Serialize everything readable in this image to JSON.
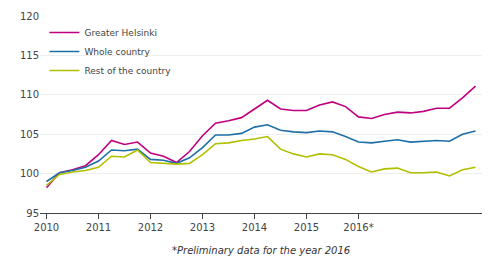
{
  "chart_data": {
    "type": "line",
    "categories": [
      "2010",
      null,
      null,
      null,
      "2011",
      null,
      null,
      null,
      "2012",
      null,
      null,
      null,
      "2013",
      null,
      null,
      null,
      "2014",
      null,
      null,
      null,
      "2015",
      null,
      null,
      null,
      "2016*",
      null,
      null,
      null,
      null,
      null,
      null,
      null,
      null,
      null
    ],
    "series": [
      {
        "name": "Greater Helsinki",
        "color": "#bf0080",
        "values": [
          98.2,
          100.1,
          100.5,
          101.0,
          102.4,
          104.2,
          103.7,
          104.0,
          102.6,
          102.2,
          101.4,
          102.8,
          104.8,
          106.4,
          106.7,
          107.1,
          108.2,
          109.3,
          108.2,
          108.0,
          108.0,
          108.7,
          109.1,
          108.5,
          107.2,
          107.0,
          107.5,
          107.8,
          107.7,
          107.9,
          108.3,
          108.3,
          109.6,
          111.1
        ]
      },
      {
        "name": "Whole country",
        "color": "#1e6fa8",
        "values": [
          99.0,
          100.1,
          100.4,
          100.8,
          101.6,
          103.0,
          102.9,
          103.1,
          101.8,
          101.7,
          101.3,
          102.0,
          103.3,
          104.9,
          104.9,
          105.1,
          105.9,
          106.2,
          105.5,
          105.3,
          105.2,
          105.4,
          105.3,
          104.7,
          104.0,
          103.9,
          104.1,
          104.3,
          104.0,
          104.1,
          104.2,
          104.1,
          105.0,
          105.4
        ]
      },
      {
        "name": "Rest of the country",
        "color": "#b0c000",
        "values": [
          98.5,
          99.9,
          100.2,
          100.4,
          100.8,
          102.2,
          102.1,
          103.0,
          101.4,
          101.3,
          101.2,
          101.3,
          102.4,
          103.8,
          103.9,
          104.2,
          104.4,
          104.7,
          103.1,
          102.5,
          102.1,
          102.5,
          102.4,
          101.8,
          100.9,
          100.2,
          100.6,
          100.7,
          100.1,
          100.1,
          100.2,
          99.7,
          100.5,
          100.8
        ]
      }
    ],
    "ylim": [
      95,
      120
    ],
    "yticks": [
      95,
      100,
      105,
      110,
      115,
      120
    ],
    "grid": true,
    "legend": "upper left",
    "annotations": [
      "*Preliminary data for the year 2016"
    ]
  }
}
